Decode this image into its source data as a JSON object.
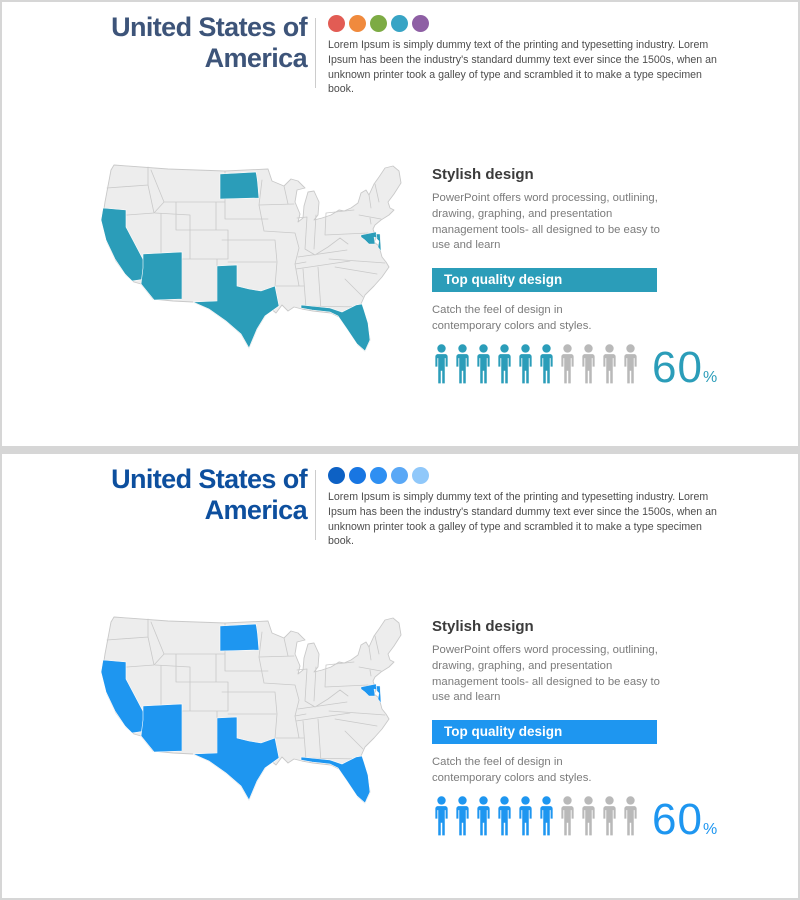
{
  "slides": [
    {
      "variant": "teal",
      "accent": "#2b9db9",
      "title": {
        "line1": "United States of",
        "line2": "America",
        "color": "#3d5479"
      },
      "palette_dots": [
        "#e25c54",
        "#f08a3d",
        "#7dab44",
        "#38a4c5",
        "#8e5fa4"
      ],
      "intro_text": "Lorem Ipsum is simply dummy text of the printing and typesetting industry. Lorem Ipsum has been the industry's standard dummy text ever since the 1500s, when an unknown printer took a galley of type and scrambled it to make a type specimen book.",
      "section": {
        "heading": "Stylish design",
        "body": "PowerPoint offers word processing, outlining, drawing, graphing, and presentation management tools- all designed to be easy to use and learn",
        "banner_label": "Top quality design",
        "caption": "Catch the feel of design in contemporary colors and styles."
      },
      "stat": {
        "value": "60",
        "unit": "%",
        "filled_people": 6,
        "total_people": 10,
        "inactive_color": "#b9b9b9"
      },
      "map": {
        "base_fill": "#ededed",
        "border_color": "#c9c9c9",
        "highlighted_states": [
          "California",
          "Arizona",
          "Texas",
          "Florida",
          "North Dakota",
          "Maryland"
        ]
      }
    },
    {
      "variant": "blue",
      "accent": "#1e96f0",
      "title": {
        "line1": "United States of",
        "line2": "America",
        "color": "#0d4f9e"
      },
      "palette_dots": [
        "#0d61c4",
        "#1876e2",
        "#2e8ff2",
        "#5aa8f6",
        "#90c8fa"
      ],
      "intro_text": "Lorem Ipsum is simply dummy text of the printing and typesetting industry. Lorem Ipsum has been the industry's standard dummy text ever since the 1500s, when an unknown printer took a galley of type and scrambled it to make a type specimen book.",
      "section": {
        "heading": "Stylish design",
        "body": "PowerPoint offers word processing, outlining, drawing, graphing, and presentation management tools- all designed to be easy to use and learn",
        "banner_label": "Top quality design",
        "caption": "Catch the feel of design in contemporary colors and styles."
      },
      "stat": {
        "value": "60",
        "unit": "%",
        "filled_people": 6,
        "total_people": 10,
        "inactive_color": "#b9b9b9"
      },
      "map": {
        "base_fill": "#ededed",
        "border_color": "#c9c9c9",
        "highlighted_states": [
          "California",
          "Arizona",
          "Texas",
          "Florida",
          "North Dakota",
          "Maryland"
        ]
      }
    }
  ]
}
